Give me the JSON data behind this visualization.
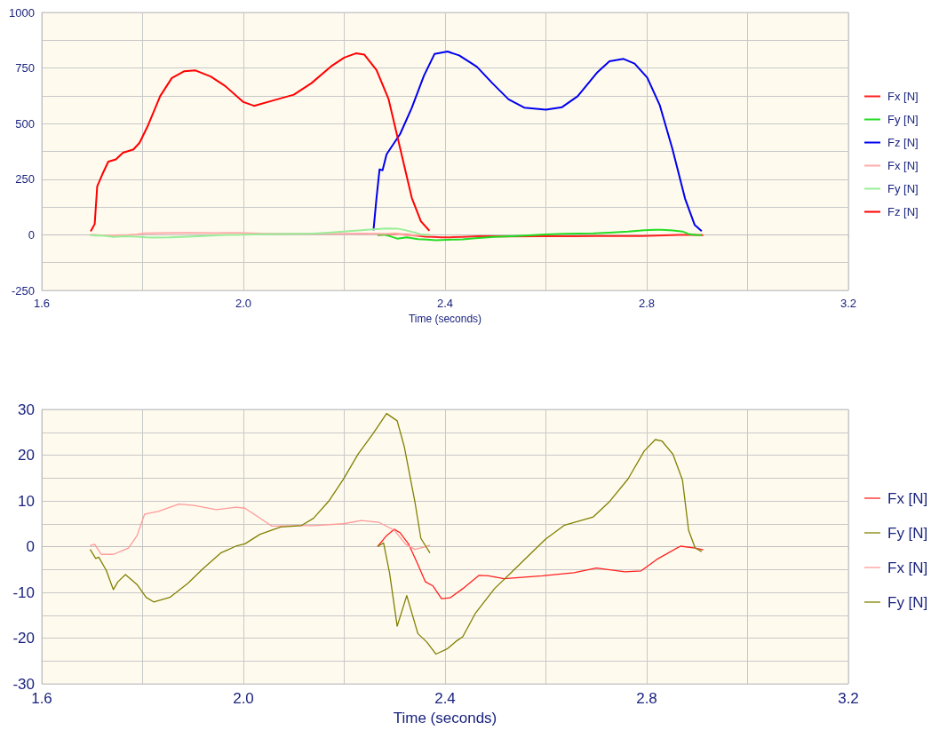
{
  "chart_data": [
    {
      "type": "line",
      "xlabel": "Time (seconds)",
      "xlim": [
        1.6,
        3.2
      ],
      "ylim": [
        -250,
        1000
      ],
      "xticks": [
        1.6,
        {
          "value": 1.8,
          "label": null
        },
        {
          "value": 2.0,
          "label": "2.0"
        },
        {
          "value": 2.2,
          "label": null
        },
        2.4,
        {
          "value": 2.6,
          "label": null
        },
        2.8,
        {
          "value": 3.0,
          "label": null
        },
        3.2
      ],
      "yticks": [
        -250,
        {
          "value": -125,
          "label": null
        },
        0,
        {
          "value": 125,
          "label": null
        },
        250,
        {
          "value": 375,
          "label": null
        },
        500,
        {
          "value": 625,
          "label": null
        },
        750,
        {
          "value": 875,
          "label": null
        },
        1000
      ],
      "grid": true,
      "legend": "right",
      "marker": "none",
      "series": [
        {
          "name": "Fx [N]",
          "color": "#ff2020",
          "x": [
            2.266,
            2.284,
            2.299,
            2.311,
            2.328,
            2.346,
            2.361,
            2.376,
            2.393,
            2.41,
            2.435,
            2.467,
            2.486,
            2.517,
            2.593,
            2.656,
            2.7,
            2.757,
            2.789,
            2.82,
            2.867,
            2.896,
            2.912
          ],
          "values": [
            0,
            2,
            4,
            3,
            0,
            -4,
            -8,
            -9,
            -11,
            -11,
            -9,
            -6,
            -6,
            -7,
            -6,
            -6,
            -5,
            -5,
            -5,
            -3,
            0,
            0,
            -1
          ]
        },
        {
          "name": "Fy [N]",
          "color": "#22dd22",
          "x": [
            2.266,
            2.278,
            2.29,
            2.305,
            2.324,
            2.346,
            2.364,
            2.382,
            2.405,
            2.423,
            2.435,
            2.46,
            2.498,
            2.542,
            2.599,
            2.637,
            2.694,
            2.725,
            2.763,
            2.795,
            2.817,
            2.83,
            2.852,
            2.871,
            2.883,
            2.896,
            2.909
          ],
          "values": [
            0,
            1,
            -6,
            -17,
            -11,
            -19,
            -21,
            -24,
            -22,
            -21,
            -20,
            -15,
            -9,
            -5,
            2,
            5,
            7,
            10,
            15,
            21,
            23,
            23,
            20,
            15,
            4,
            0,
            -1
          ]
        },
        {
          "name": "Fz [N]",
          "color": "#0000ee",
          "x": [
            2.258,
            2.264,
            2.27,
            2.276,
            2.284,
            2.311,
            2.334,
            2.358,
            2.379,
            2.405,
            2.428,
            2.463,
            2.495,
            2.526,
            2.557,
            2.6,
            2.632,
            2.663,
            2.701,
            2.726,
            2.754,
            2.776,
            2.801,
            2.826,
            2.851,
            2.876,
            2.895,
            2.909
          ],
          "values": [
            20,
            166,
            294,
            290,
            362,
            454,
            571,
            715,
            813,
            824,
            807,
            756,
            679,
            609,
            572,
            563,
            574,
            623,
            728,
            780,
            791,
            770,
            707,
            582,
            386,
            163,
            45,
            17
          ]
        },
        {
          "name": "Fx [N]",
          "color": "#ffaaaa",
          "x": [
            1.696,
            1.705,
            1.718,
            1.742,
            1.772,
            1.789,
            1.804,
            1.831,
            1.872,
            1.902,
            1.946,
            1.985,
            2.003,
            2.033,
            2.056,
            2.103,
            2.139,
            2.198,
            2.234,
            2.269,
            2.299,
            2.322,
            2.34,
            2.358,
            2.37
          ],
          "values": [
            0,
            0,
            -2,
            -2,
            0,
            2,
            7,
            8,
            9,
            9,
            8,
            9,
            8,
            6,
            5,
            5,
            5,
            5,
            6,
            5,
            4,
            0,
            -1,
            0,
            0
          ]
        },
        {
          "name": "Fy [N]",
          "color": "#99ee99",
          "x": [
            1.696,
            1.707,
            1.713,
            1.728,
            1.742,
            1.751,
            1.766,
            1.789,
            1.807,
            1.822,
            1.854,
            1.89,
            1.92,
            1.955,
            1.985,
            2.003,
            2.033,
            2.074,
            2.115,
            2.139,
            2.169,
            2.198,
            2.228,
            2.257,
            2.284,
            2.305,
            2.319,
            2.34,
            2.352,
            2.37
          ],
          "values": [
            -1,
            -3,
            -2,
            -5,
            -9,
            -8,
            -6,
            -8,
            -11,
            -12,
            -11,
            -8,
            -5,
            -1,
            0,
            1,
            3,
            4,
            5,
            6,
            10,
            15,
            20,
            25,
            29,
            28,
            22,
            10,
            2,
            -1
          ]
        },
        {
          "name": "Fz [N]",
          "color": "#ff0000",
          "x": [
            1.697,
            1.705,
            1.71,
            1.72,
            1.732,
            1.747,
            1.761,
            1.782,
            1.794,
            1.811,
            1.835,
            1.858,
            1.882,
            1.905,
            1.935,
            1.964,
            2.0,
            2.021,
            2.059,
            2.1,
            2.135,
            2.176,
            2.2,
            2.223,
            2.24,
            2.264,
            2.288,
            2.311,
            2.334,
            2.352,
            2.369
          ],
          "values": [
            16,
            48,
            218,
            271,
            329,
            339,
            369,
            384,
            414,
            493,
            624,
            705,
            735,
            739,
            712,
            669,
            597,
            580,
            604,
            630,
            682,
            761,
            797,
            816,
            810,
            741,
            610,
            388,
            166,
            61,
            18
          ]
        }
      ]
    },
    {
      "type": "line",
      "xlabel": "Time (seconds)",
      "xlim": [
        1.6,
        3.2
      ],
      "ylim": [
        -30,
        30
      ],
      "xticks": [
        1.6,
        {
          "value": 1.8,
          "label": null
        },
        {
          "value": 2.0,
          "label": "2.0"
        },
        {
          "value": 2.2,
          "label": null
        },
        2.4,
        {
          "value": 2.6,
          "label": null
        },
        2.8,
        {
          "value": 3.0,
          "label": null
        },
        3.2
      ],
      "yticks": [
        -30,
        {
          "value": -25,
          "label": null
        },
        -20,
        {
          "value": -15,
          "label": null
        },
        -10,
        {
          "value": -5,
          "label": null
        },
        0,
        {
          "value": 5,
          "label": null
        },
        10,
        {
          "value": 15,
          "label": null
        },
        20,
        {
          "value": 25,
          "label": null
        },
        30
      ],
      "grid": true,
      "legend": "right",
      "marker": "none",
      "series": [
        {
          "name": "Fx [N]",
          "color": "#ff2020",
          "x": [
            2.266,
            2.284,
            2.299,
            2.311,
            2.328,
            2.346,
            2.361,
            2.376,
            2.393,
            2.41,
            2.435,
            2.467,
            2.486,
            2.517,
            2.593,
            2.656,
            2.7,
            2.757,
            2.789,
            2.82,
            2.867,
            2.896,
            2.912
          ],
          "values": [
            0,
            2.4,
            3.8,
            3.0,
            0.5,
            -3.9,
            -7.7,
            -8.6,
            -11.4,
            -11.2,
            -9.2,
            -6.3,
            -6.4,
            -7.0,
            -6.4,
            -5.7,
            -4.7,
            -5.5,
            -5.3,
            -2.8,
            0.1,
            -0.3,
            -0.7
          ]
        },
        {
          "name": "Fy [N]",
          "color": "#808000",
          "x": [
            2.266,
            2.278,
            2.29,
            2.305,
            2.324,
            2.346,
            2.364,
            2.382,
            2.405,
            2.423,
            2.435,
            2.46,
            2.498,
            2.542,
            2.599,
            2.637,
            2.694,
            2.725,
            2.763,
            2.795,
            2.817,
            2.83,
            2.852,
            2.871,
            2.883,
            2.896,
            2.909
          ],
          "values": [
            0,
            0.8,
            -5.8,
            -17.4,
            -10.7,
            -19.0,
            -20.9,
            -23.5,
            -22.3,
            -20.6,
            -19.7,
            -14.6,
            -9.2,
            -4.5,
            1.6,
            4.7,
            6.5,
            9.7,
            14.8,
            20.9,
            23.4,
            23.1,
            20.2,
            14.5,
            3.6,
            -0.3,
            -1.1
          ]
        },
        {
          "name": "Fx [N]",
          "color": "#ff9999",
          "x": [
            1.696,
            1.705,
            1.718,
            1.742,
            1.772,
            1.789,
            1.804,
            1.831,
            1.872,
            1.902,
            1.946,
            1.985,
            2.003,
            2.033,
            2.056,
            2.103,
            2.139,
            2.198,
            2.234,
            2.269,
            2.299,
            2.322,
            2.34,
            2.358,
            2.37
          ],
          "values": [
            0.2,
            0.5,
            -1.7,
            -1.7,
            -0.3,
            2.4,
            7.1,
            7.7,
            9.3,
            9.0,
            8.1,
            8.6,
            8.4,
            6.2,
            4.5,
            4.6,
            4.6,
            5.0,
            5.7,
            5.3,
            3.6,
            0.5,
            -0.6,
            -0.1,
            0.3
          ]
        },
        {
          "name": "Fy [N]",
          "color": "#808000",
          "x": [
            1.696,
            1.707,
            1.713,
            1.728,
            1.742,
            1.751,
            1.766,
            1.789,
            1.807,
            1.822,
            1.854,
            1.89,
            1.92,
            1.955,
            1.985,
            2.003,
            2.033,
            2.074,
            2.115,
            2.139,
            2.169,
            2.198,
            2.228,
            2.257,
            2.284,
            2.305,
            2.319,
            2.34,
            2.352,
            2.37
          ],
          "values": [
            -0.6,
            -2.6,
            -2.3,
            -5.2,
            -9.4,
            -7.7,
            -6.1,
            -8.3,
            -11.1,
            -12.1,
            -11.1,
            -8.0,
            -4.8,
            -1.4,
            0.1,
            0.6,
            2.7,
            4.3,
            4.6,
            6.2,
            9.9,
            14.7,
            20.3,
            24.7,
            29.1,
            27.5,
            21.9,
            9.9,
            1.8,
            -1.4
          ]
        }
      ]
    }
  ]
}
